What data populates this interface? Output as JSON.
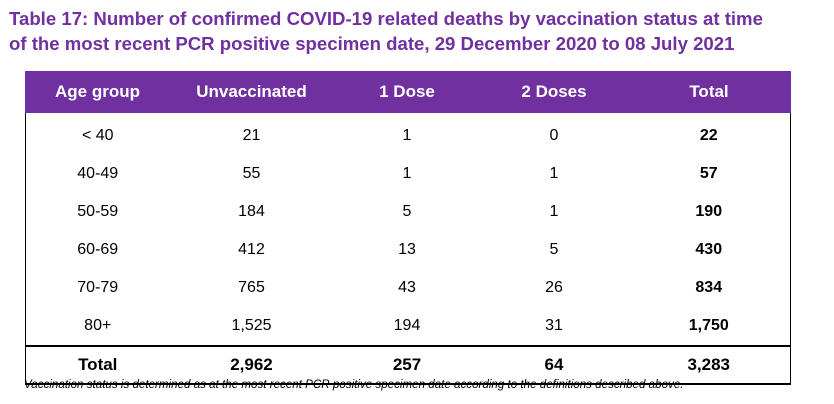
{
  "title": {
    "line1": "Table 17: Number of confirmed COVID-19 related deaths by vaccination status at time",
    "line2": "of the most recent PCR positive specimen date, 29 December 2020 to 08 July 2021"
  },
  "colors": {
    "header_bg": "#7030a0",
    "title_text": "#7030a0",
    "header_text": "#ffffff"
  },
  "table": {
    "headers": [
      "Age group",
      "Unvaccinated",
      "1 Dose",
      "2 Doses",
      "Total"
    ],
    "rows": [
      [
        "< 40",
        "21",
        "1",
        "0",
        "22"
      ],
      [
        "40-49",
        "55",
        "1",
        "1",
        "57"
      ],
      [
        "50-59",
        "184",
        "5",
        "1",
        "190"
      ],
      [
        "60-69",
        "412",
        "13",
        "5",
        "430"
      ],
      [
        "70-79",
        "765",
        "43",
        "26",
        "834"
      ],
      [
        "80+",
        "1,525",
        "194",
        "31",
        "1,750"
      ]
    ],
    "total_row": [
      "Total",
      "2,962",
      "257",
      "64",
      "3,283"
    ]
  },
  "footnote": "Vaccination status is determined as at the most recent PCR positive specimen date according to the definitions described above."
}
